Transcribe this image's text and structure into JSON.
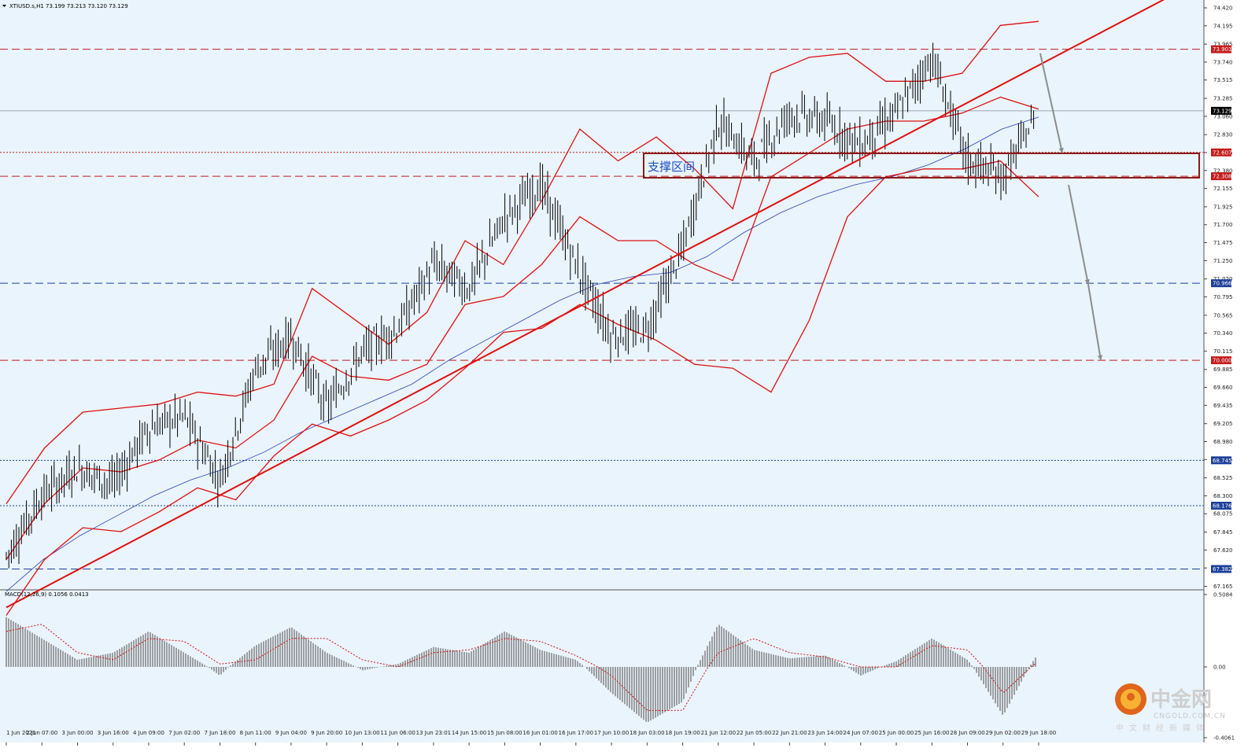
{
  "header": {
    "title": "XTIUSD.s,H1  73.199 73.213 73.120 73.129",
    "macd_title": "MACD(12,26,9) 0.1056 0.0413"
  },
  "zone_label": "支撑区间",
  "logo": {
    "cn": "中金网",
    "en": "CNGOLD.COM.CN",
    "tag": "中文财经新媒体"
  },
  "colors": {
    "background": "#e9f4fc",
    "candle": "#000000",
    "band": "#e01010",
    "ma": "#2a3fb4",
    "macd_hist": "#7a7a7a",
    "signal": "#d01010",
    "level_red": "#c41b1b",
    "level_blue": "#1c3f9a"
  },
  "chart_data": [
    {
      "type": "candlestick",
      "title": "XTIUSD.s,H1  73.199 73.213 73.120 73.129",
      "symbol": "XTIUSD.s",
      "timeframe": "H1",
      "ohlc_last": {
        "open": 73.199,
        "high": 73.213,
        "low": 73.12,
        "close": 73.129
      },
      "ylim": [
        67.16,
        74.42
      ],
      "y_ticks": [
        74.42,
        74.195,
        73.965,
        73.74,
        73.515,
        73.285,
        73.06,
        72.83,
        72.605,
        72.38,
        72.155,
        71.925,
        71.7,
        71.475,
        71.25,
        71.02,
        70.795,
        70.565,
        70.34,
        70.115,
        69.885,
        69.66,
        69.435,
        69.205,
        68.98,
        68.755,
        68.525,
        68.3,
        68.075,
        67.845,
        67.62,
        67.395,
        67.165
      ],
      "x_ticks": [
        "1 Jun 2021",
        "2 Jun 07:00",
        "3 Jun 00:00",
        "3 Jun 16:00",
        "4 Jun 09:00",
        "7 Jun 02:00",
        "7 Jun 18:00",
        "8 Jun 11:00",
        "9 Jun 04:00",
        "9 Jun 20:00",
        "10 Jun 13:00",
        "11 Jun 06:00",
        "13 Jun 23:01",
        "14 Jun 15:00",
        "15 Jun 08:00",
        "16 Jun 01:00",
        "16 Jun 17:00",
        "17 Jun 10:00",
        "18 Jun 03:00",
        "18 Jun 19:00",
        "21 Jun 12:00",
        "22 Jun 05:00",
        "22 Jun 21:00",
        "23 Jun 14:00",
        "24 Jun 07:00",
        "25 Jun 00:00",
        "25 Jun 16:00",
        "28 Jun 09:00",
        "29 Jun 02:00",
        "29 Jun 18:00"
      ],
      "levels": [
        {
          "value": 73.901,
          "label": "73.901",
          "style": "dashed",
          "color": "#c41b1b"
        },
        {
          "value": 73.129,
          "label": "73.129",
          "style": "solid",
          "color": "#000000"
        },
        {
          "value": 72.607,
          "label": "72.607",
          "style": "dotted",
          "color": "#c41b1b"
        },
        {
          "value": 72.308,
          "label": "72.308",
          "style": "dashed",
          "color": "#c41b1b"
        },
        {
          "value": 70.966,
          "label": "70.966",
          "style": "dashed",
          "color": "#1c3f9a"
        },
        {
          "value": 70.0,
          "label": "70.000",
          "style": "dashed",
          "color": "#c41b1b"
        },
        {
          "value": 68.745,
          "label": "68.745",
          "style": "dotted",
          "color": "#1c3f9a"
        },
        {
          "value": 68.176,
          "label": "68.176",
          "style": "dotted",
          "color": "#1c3f9a"
        },
        {
          "value": 67.382,
          "label": "67.382",
          "style": "dashed",
          "color": "#1c3f9a"
        }
      ],
      "support_zone": {
        "label": "支撑区间",
        "from": 72.308,
        "to": 72.607
      },
      "trendline": {
        "start": {
          "date": "1 Jun 2021",
          "value": 66.9
        },
        "end": {
          "date": "29 Jun 18:00",
          "value": 73.7
        }
      },
      "projection": [
        73.85,
        72.6,
        72.2,
        70.95,
        70.0
      ],
      "path": [
        {
          "date": "1 Jun 2021",
          "value": 67.55
        },
        {
          "date": "2 Jun 07:00",
          "value": 68.3
        },
        {
          "date": "3 Jun 00:00",
          "value": 68.65
        },
        {
          "date": "3 Jun 16:00",
          "value": 68.45
        },
        {
          "date": "4 Jun 09:00",
          "value": 69.15
        },
        {
          "date": "7 Jun 02:00",
          "value": 69.3
        },
        {
          "date": "7 Jun 18:00",
          "value": 68.5
        },
        {
          "date": "8 Jun 11:00",
          "value": 69.9
        },
        {
          "date": "9 Jun 04:00",
          "value": 70.3
        },
        {
          "date": "9 Jun 20:00",
          "value": 69.4
        },
        {
          "date": "10 Jun 13:00",
          "value": 70.1
        },
        {
          "date": "11 Jun 06:00",
          "value": 70.4
        },
        {
          "date": "13 Jun 23:01",
          "value": 71.2
        },
        {
          "date": "14 Jun 15:00",
          "value": 70.9
        },
        {
          "date": "15 Jun 08:00",
          "value": 71.8
        },
        {
          "date": "16 Jun 01:00",
          "value": 72.2
        },
        {
          "date": "16 Jun 17:00",
          "value": 71.2
        },
        {
          "date": "17 Jun 10:00",
          "value": 70.3
        },
        {
          "date": "18 Jun 03:00",
          "value": 70.4
        },
        {
          "date": "18 Jun 19:00",
          "value": 71.4
        },
        {
          "date": "21 Jun 12:00",
          "value": 73.0
        },
        {
          "date": "22 Jun 05:00",
          "value": 72.5
        },
        {
          "date": "22 Jun 21:00",
          "value": 73.1
        },
        {
          "date": "23 Jun 14:00",
          "value": 73.0
        },
        {
          "date": "24 Jun 07:00",
          "value": 72.7
        },
        {
          "date": "25 Jun 00:00",
          "value": 73.1
        },
        {
          "date": "25 Jun 16:00",
          "value": 73.8
        },
        {
          "date": "28 Jun 09:00",
          "value": 72.5
        },
        {
          "date": "29 Jun 02:00",
          "value": 72.3
        },
        {
          "date": "29 Jun 18:00",
          "value": 73.129
        }
      ],
      "bands": {
        "upper": [
          68.2,
          68.9,
          69.35,
          69.4,
          69.45,
          69.6,
          69.55,
          69.7,
          70.9,
          70.55,
          70.2,
          70.6,
          71.5,
          71.2,
          72.0,
          72.9,
          72.5,
          72.8,
          72.4,
          71.9,
          73.6,
          73.8,
          73.85,
          73.5,
          73.5,
          73.6,
          74.2,
          74.25
        ],
        "middle": [
          67.5,
          68.2,
          68.65,
          68.6,
          68.75,
          69.0,
          68.9,
          69.25,
          70.05,
          69.8,
          69.75,
          69.95,
          70.7,
          70.8,
          71.2,
          71.8,
          71.5,
          71.5,
          71.2,
          71.0,
          72.3,
          72.6,
          72.9,
          73.0,
          73.0,
          73.1,
          73.3,
          73.15
        ],
        "lower": [
          66.8,
          67.5,
          67.9,
          67.85,
          68.1,
          68.4,
          68.25,
          68.8,
          69.2,
          69.05,
          69.25,
          69.5,
          69.9,
          70.35,
          70.4,
          70.7,
          70.45,
          70.25,
          69.95,
          69.9,
          69.6,
          70.5,
          71.8,
          72.3,
          72.4,
          72.4,
          72.5,
          72.05
        ]
      },
      "ma": [
        67.1,
        67.5,
        67.8,
        68.05,
        68.3,
        68.5,
        68.65,
        68.85,
        69.1,
        69.3,
        69.5,
        69.7,
        70.0,
        70.25,
        70.5,
        70.75,
        70.95,
        71.05,
        71.1,
        71.3,
        71.6,
        71.85,
        72.05,
        72.2,
        72.3,
        72.45,
        72.65,
        72.9,
        73.05
      ]
    },
    {
      "type": "bar",
      "title": "MACD(12,26,9) 0.1056 0.0413",
      "name": "MACD",
      "params": [
        12,
        26,
        9
      ],
      "last_macd": 0.1056,
      "last_signal": 0.0413,
      "ylim": [
        -0.4061,
        0.5084
      ],
      "y_ticks": [
        0.5084,
        0.0,
        -0.4061
      ],
      "x_ticks_ref": "same as price chart",
      "values": [
        0.35,
        0.2,
        0.05,
        0.1,
        0.25,
        0.1,
        -0.05,
        0.15,
        0.28,
        0.1,
        -0.02,
        0.02,
        0.14,
        0.1,
        0.25,
        0.12,
        0.05,
        -0.15,
        -0.32,
        -0.2,
        0.3,
        0.12,
        0.06,
        0.08,
        -0.05,
        0.04,
        0.2,
        0.05,
        -0.28,
        0.1
      ],
      "signal": [
        0.25,
        0.3,
        0.1,
        0.05,
        0.2,
        0.18,
        0.02,
        0.05,
        0.2,
        0.2,
        0.05,
        0.0,
        0.1,
        0.12,
        0.2,
        0.18,
        0.08,
        -0.05,
        -0.25,
        -0.25,
        0.1,
        0.2,
        0.1,
        0.07,
        0.0,
        0.0,
        0.15,
        0.12,
        -0.15,
        0.04
      ]
    }
  ]
}
